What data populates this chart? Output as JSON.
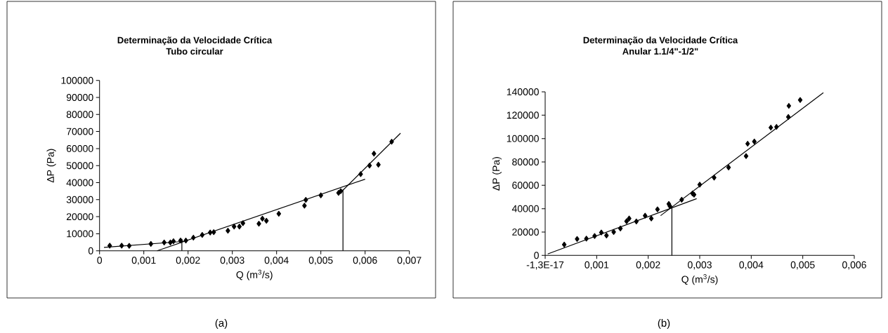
{
  "chart_data": [
    {
      "type": "scatter",
      "title": "Determinação da Velocidade Crítica",
      "subtitle": "Tubo circular",
      "xlabel": "Q (m$^{3}$/s)",
      "ylabel": "ΔP (Pa)",
      "xlim": [
        0,
        0.007
      ],
      "ylim": [
        0,
        100000
      ],
      "xticks": [
        {
          "value": 0,
          "label": "0"
        },
        {
          "value": 0.001,
          "label": "0,001"
        },
        {
          "value": 0.002,
          "label": "0,002"
        },
        {
          "value": 0.003,
          "label": "0,003"
        },
        {
          "value": 0.004,
          "label": "0,004"
        },
        {
          "value": 0.005,
          "label": "0,005"
        },
        {
          "value": 0.006,
          "label": "0,006"
        },
        {
          "value": 0.007,
          "label": "0,007"
        }
      ],
      "yticks": [
        0,
        10000,
        20000,
        30000,
        40000,
        50000,
        60000,
        70000,
        80000,
        90000,
        100000
      ],
      "annotations": [
        "(a)"
      ],
      "series": [
        {
          "type": "scatter",
          "marker": "diamond",
          "color": "#000000",
          "x": [
            0.00023,
            0.0005,
            0.00067,
            0.00116,
            0.00146,
            0.0016,
            0.00167,
            0.00183,
            0.00195,
            0.00212,
            0.00232,
            0.0025,
            0.00258,
            0.0029,
            0.00304,
            0.00316,
            0.00324,
            0.0036,
            0.00368,
            0.00377,
            0.00405,
            0.00463,
            0.00466,
            0.005,
            0.0054,
            0.00545,
            0.0059,
            0.0061,
            0.0062,
            0.0063,
            0.0066
          ],
          "values": [
            3000,
            3000,
            2900,
            4000,
            4900,
            4900,
            5600,
            6000,
            6000,
            7700,
            9300,
            10700,
            10900,
            11800,
            14200,
            14200,
            16200,
            15900,
            18900,
            17600,
            21700,
            26500,
            29900,
            32500,
            34000,
            35000,
            45000,
            50000,
            57000,
            50500,
            64000
          ]
        },
        {
          "type": "line",
          "marker": "none",
          "color": "#000000",
          "x": [
            0.0001,
            0.0019
          ],
          "values": [
            2000,
            5500
          ]
        },
        {
          "type": "line",
          "marker": "none",
          "color": "#000000",
          "x": [
            0.0013,
            0.006
          ],
          "values": [
            0,
            42000
          ]
        },
        {
          "type": "line",
          "marker": "none",
          "color": "#000000",
          "x": [
            0.0054,
            0.0068
          ],
          "values": [
            33000,
            69000
          ]
        },
        {
          "type": "line",
          "marker": "none",
          "color": "#000000",
          "x": [
            0.00186,
            0.00186
          ],
          "values": [
            0,
            7000
          ]
        },
        {
          "type": "line",
          "marker": "none",
          "color": "#000000",
          "x": [
            0.0055,
            0.0055
          ],
          "values": [
            0,
            36000
          ]
        }
      ]
    },
    {
      "type": "scatter",
      "title": "Determinação da Velocidade Crítica",
      "subtitle": "Anular 1.1/4\"-1/2\"",
      "xlabel": "Q (m$^{3}$/s)",
      "ylabel": "ΔP (Pa)",
      "xlim": [
        0,
        0.006
      ],
      "ylim": [
        0,
        140000
      ],
      "xticks": [
        {
          "value": 0,
          "label": "-1,3E-17"
        },
        {
          "value": 0.001,
          "label": "0,001"
        },
        {
          "value": 0.002,
          "label": "0,002"
        },
        {
          "value": 0.003,
          "label": "0,003"
        },
        {
          "value": 0.004,
          "label": "0,004"
        },
        {
          "value": 0.005,
          "label": "0,005"
        },
        {
          "value": 0.006,
          "label": "0,006"
        }
      ],
      "yticks": [
        0,
        20000,
        40000,
        60000,
        80000,
        100000,
        120000,
        140000
      ],
      "annotations": [
        "(b)"
      ],
      "series": [
        {
          "type": "scatter",
          "marker": "diamond",
          "color": "#000000",
          "x": [
            0.00037,
            0.00062,
            0.0008,
            0.00096,
            0.00109,
            0.00119,
            0.00133,
            0.00146,
            0.00158,
            0.00163,
            0.00177,
            0.00194,
            0.00206,
            0.00218,
            0.0024,
            0.00242,
            0.00265,
            0.00286,
            0.00289,
            0.003,
            0.00328,
            0.00356,
            0.0039,
            0.00393,
            0.00406,
            0.00438,
            0.00449,
            0.00472,
            0.00473,
            0.00495
          ],
          "values": [
            9200,
            14000,
            14400,
            16600,
            19600,
            17000,
            20000,
            23000,
            29200,
            31600,
            29000,
            34000,
            31600,
            39400,
            44000,
            42200,
            47600,
            53000,
            52000,
            60600,
            66600,
            75300,
            85000,
            95600,
            97500,
            109400,
            110000,
            118500,
            128000,
            133000
          ]
        },
        {
          "type": "line",
          "marker": "none",
          "color": "#000000",
          "x": [
            5e-05,
            0.00294
          ],
          "values": [
            1200,
            48600
          ]
        },
        {
          "type": "line",
          "marker": "none",
          "color": "#000000",
          "x": [
            0.00224,
            0.0054
          ],
          "values": [
            34000,
            139300
          ]
        },
        {
          "type": "line",
          "marker": "none",
          "color": "#000000",
          "x": [
            0.00246,
            0.00246
          ],
          "values": [
            0,
            42000
          ]
        }
      ]
    }
  ]
}
